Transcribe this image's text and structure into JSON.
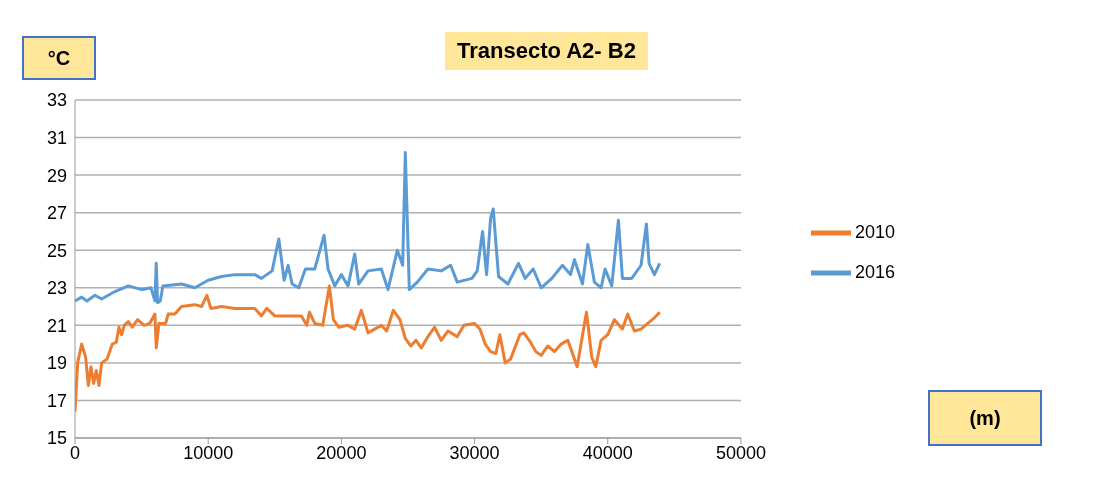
{
  "chart_data": {
    "type": "line",
    "title": "Transecto A2- B2",
    "annotations": [
      "(m)"
    ],
    "ylabel": "°C",
    "xlim": [
      0,
      50000
    ],
    "xticks": [
      0,
      10000,
      20000,
      30000,
      40000,
      50000
    ],
    "ylim": [
      15,
      33
    ],
    "yticks": [
      15,
      17,
      19,
      21,
      23,
      25,
      27,
      29,
      31,
      33
    ],
    "grid": "y",
    "legend": "right",
    "marker": "none",
    "line_style": "solid",
    "series": [
      {
        "name": "2010",
        "color": "#ed7d31",
        "x": [
          0,
          200,
          500,
          800,
          1000,
          1200,
          1400,
          1600,
          1800,
          2000,
          2400,
          2800,
          3100,
          3300,
          3500,
          3700,
          4000,
          4300,
          4700,
          5200,
          5600,
          6000,
          6100,
          6300,
          6800,
          7000,
          7500,
          8000,
          9000,
          9500,
          9900,
          10200,
          11000,
          12000,
          13500,
          14000,
          14400,
          15000,
          17000,
          17400,
          17600,
          18000,
          18600,
          19100,
          19400,
          19800,
          20500,
          21000,
          21500,
          22000,
          22500,
          23000,
          23400,
          23900,
          24400,
          24800,
          25200,
          25600,
          26000,
          26500,
          27000,
          27500,
          28000,
          28700,
          29200,
          30000,
          30400,
          30800,
          31200,
          31600,
          31900,
          32300,
          32700,
          33400,
          33700,
          34200,
          34600,
          35000,
          35500,
          36000,
          36500,
          37000,
          37300,
          37700,
          38400,
          38800,
          39100,
          39500,
          40000,
          40500,
          41100,
          41500,
          42000,
          42500,
          43000,
          43500,
          43900
        ],
        "values": [
          16.4,
          19.0,
          20.0,
          19.3,
          17.8,
          18.8,
          17.9,
          18.6,
          17.8,
          19.0,
          19.2,
          20.0,
          20.1,
          20.9,
          20.5,
          21.0,
          21.2,
          20.9,
          21.3,
          21.0,
          21.1,
          21.6,
          19.8,
          21.1,
          21.1,
          21.6,
          21.6,
          22.0,
          22.1,
          22.0,
          22.6,
          21.9,
          22.0,
          21.9,
          21.9,
          21.5,
          21.9,
          21.5,
          21.5,
          21.0,
          21.7,
          21.1,
          21.0,
          23.1,
          21.3,
          20.9,
          21.0,
          20.8,
          21.8,
          20.6,
          20.8,
          21.0,
          20.7,
          21.8,
          21.3,
          20.3,
          19.9,
          20.2,
          19.8,
          20.4,
          20.9,
          20.2,
          20.7,
          20.4,
          21.0,
          21.1,
          20.8,
          20.0,
          19.6,
          19.5,
          20.5,
          19.0,
          19.2,
          20.5,
          20.6,
          20.1,
          19.6,
          19.4,
          19.9,
          19.6,
          20.0,
          20.2,
          19.6,
          18.8,
          21.7,
          19.3,
          18.8,
          20.2,
          20.5,
          21.3,
          20.8,
          21.6,
          20.7,
          20.8,
          21.1,
          21.4,
          21.7
        ]
      },
      {
        "name": "2016",
        "color": "#5b9bd5",
        "x": [
          0,
          500,
          900,
          1500,
          2000,
          3000,
          4000,
          5000,
          5700,
          6000,
          6100,
          6200,
          6400,
          6600,
          8000,
          9000,
          10000,
          11000,
          12000,
          13500,
          14000,
          14800,
          15300,
          15700,
          16000,
          16300,
          16800,
          17300,
          18000,
          18700,
          19000,
          19500,
          20000,
          20500,
          21000,
          21300,
          22000,
          23000,
          23500,
          24200,
          24600,
          24800,
          25100,
          25700,
          26500,
          27500,
          28200,
          28700,
          29800,
          30200,
          30600,
          30900,
          31200,
          31400,
          31800,
          32500,
          33300,
          33800,
          34400,
          35000,
          35800,
          36600,
          37200,
          37500,
          38100,
          38500,
          39000,
          39500,
          39800,
          40300,
          40800,
          41100,
          41800,
          42500,
          42900,
          43100,
          43500,
          43900
        ],
        "values": [
          22.3,
          22.5,
          22.3,
          22.6,
          22.4,
          22.8,
          23.1,
          22.9,
          23.0,
          22.3,
          24.3,
          22.2,
          22.3,
          23.1,
          23.2,
          23.0,
          23.4,
          23.6,
          23.7,
          23.7,
          23.5,
          23.9,
          25.6,
          23.4,
          24.2,
          23.2,
          23.0,
          24.0,
          24.0,
          25.8,
          24.0,
          23.1,
          23.7,
          23.1,
          24.8,
          23.2,
          23.9,
          24.0,
          22.9,
          25.0,
          24.2,
          30.2,
          22.9,
          23.3,
          24.0,
          23.9,
          24.2,
          23.3,
          23.5,
          23.9,
          26.0,
          23.7,
          26.7,
          27.2,
          23.6,
          23.2,
          24.3,
          23.5,
          24.0,
          23.0,
          23.5,
          24.2,
          23.7,
          24.5,
          23.2,
          25.3,
          23.3,
          23.0,
          24.0,
          23.1,
          26.6,
          23.5,
          23.5,
          24.2,
          26.4,
          24.3,
          23.7,
          24.3
        ]
      }
    ]
  }
}
